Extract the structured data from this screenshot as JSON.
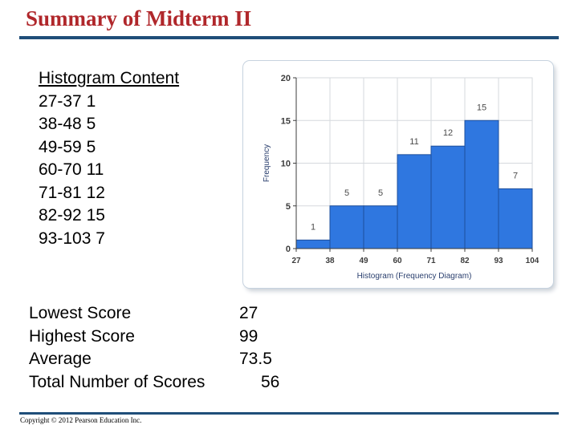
{
  "slide": {
    "title": "Summary of Midterm II",
    "copyright": "Copyright © 2012 Pearson Education Inc."
  },
  "histogram_content": {
    "heading": "Histogram Content",
    "rows": [
      {
        "range": "27-37",
        "count": "1"
      },
      {
        "range": "38-48",
        "count": "5"
      },
      {
        "range": "49-59",
        "count": "5"
      },
      {
        "range": "60-70",
        "count": "11"
      },
      {
        "range": "71-81",
        "count": "12"
      },
      {
        "range": "82-92",
        "count": "15"
      },
      {
        "range": "93-103",
        "count": "7"
      }
    ]
  },
  "stats": {
    "rows": [
      {
        "label": "Lowest Score",
        "value": "27"
      },
      {
        "label": "Highest Score",
        "value": "99"
      },
      {
        "label": "Average",
        "value": "73.5"
      },
      {
        "label": "Total Number of Scores",
        "value": "56"
      }
    ]
  },
  "chart_data": {
    "type": "bar",
    "bin_edges": [
      27,
      38,
      49,
      60,
      71,
      82,
      93,
      104
    ],
    "values": [
      1,
      5,
      5,
      11,
      12,
      15,
      7
    ],
    "xlabel": "Histogram (Frequency Diagram)",
    "ylabel": "Frequency",
    "ylim": [
      0,
      20
    ],
    "yticks": [
      0,
      5,
      10,
      15,
      20
    ],
    "grid": true,
    "colors": {
      "bar": "#2f77e0",
      "bar_edge": "#1d4f9c",
      "grid": "#d6d9de",
      "axis": "#3c3c3c",
      "tick_text": "#3c3c3c",
      "data_label": "#4a4a4a",
      "axis_title": "#2a3f6e"
    }
  }
}
